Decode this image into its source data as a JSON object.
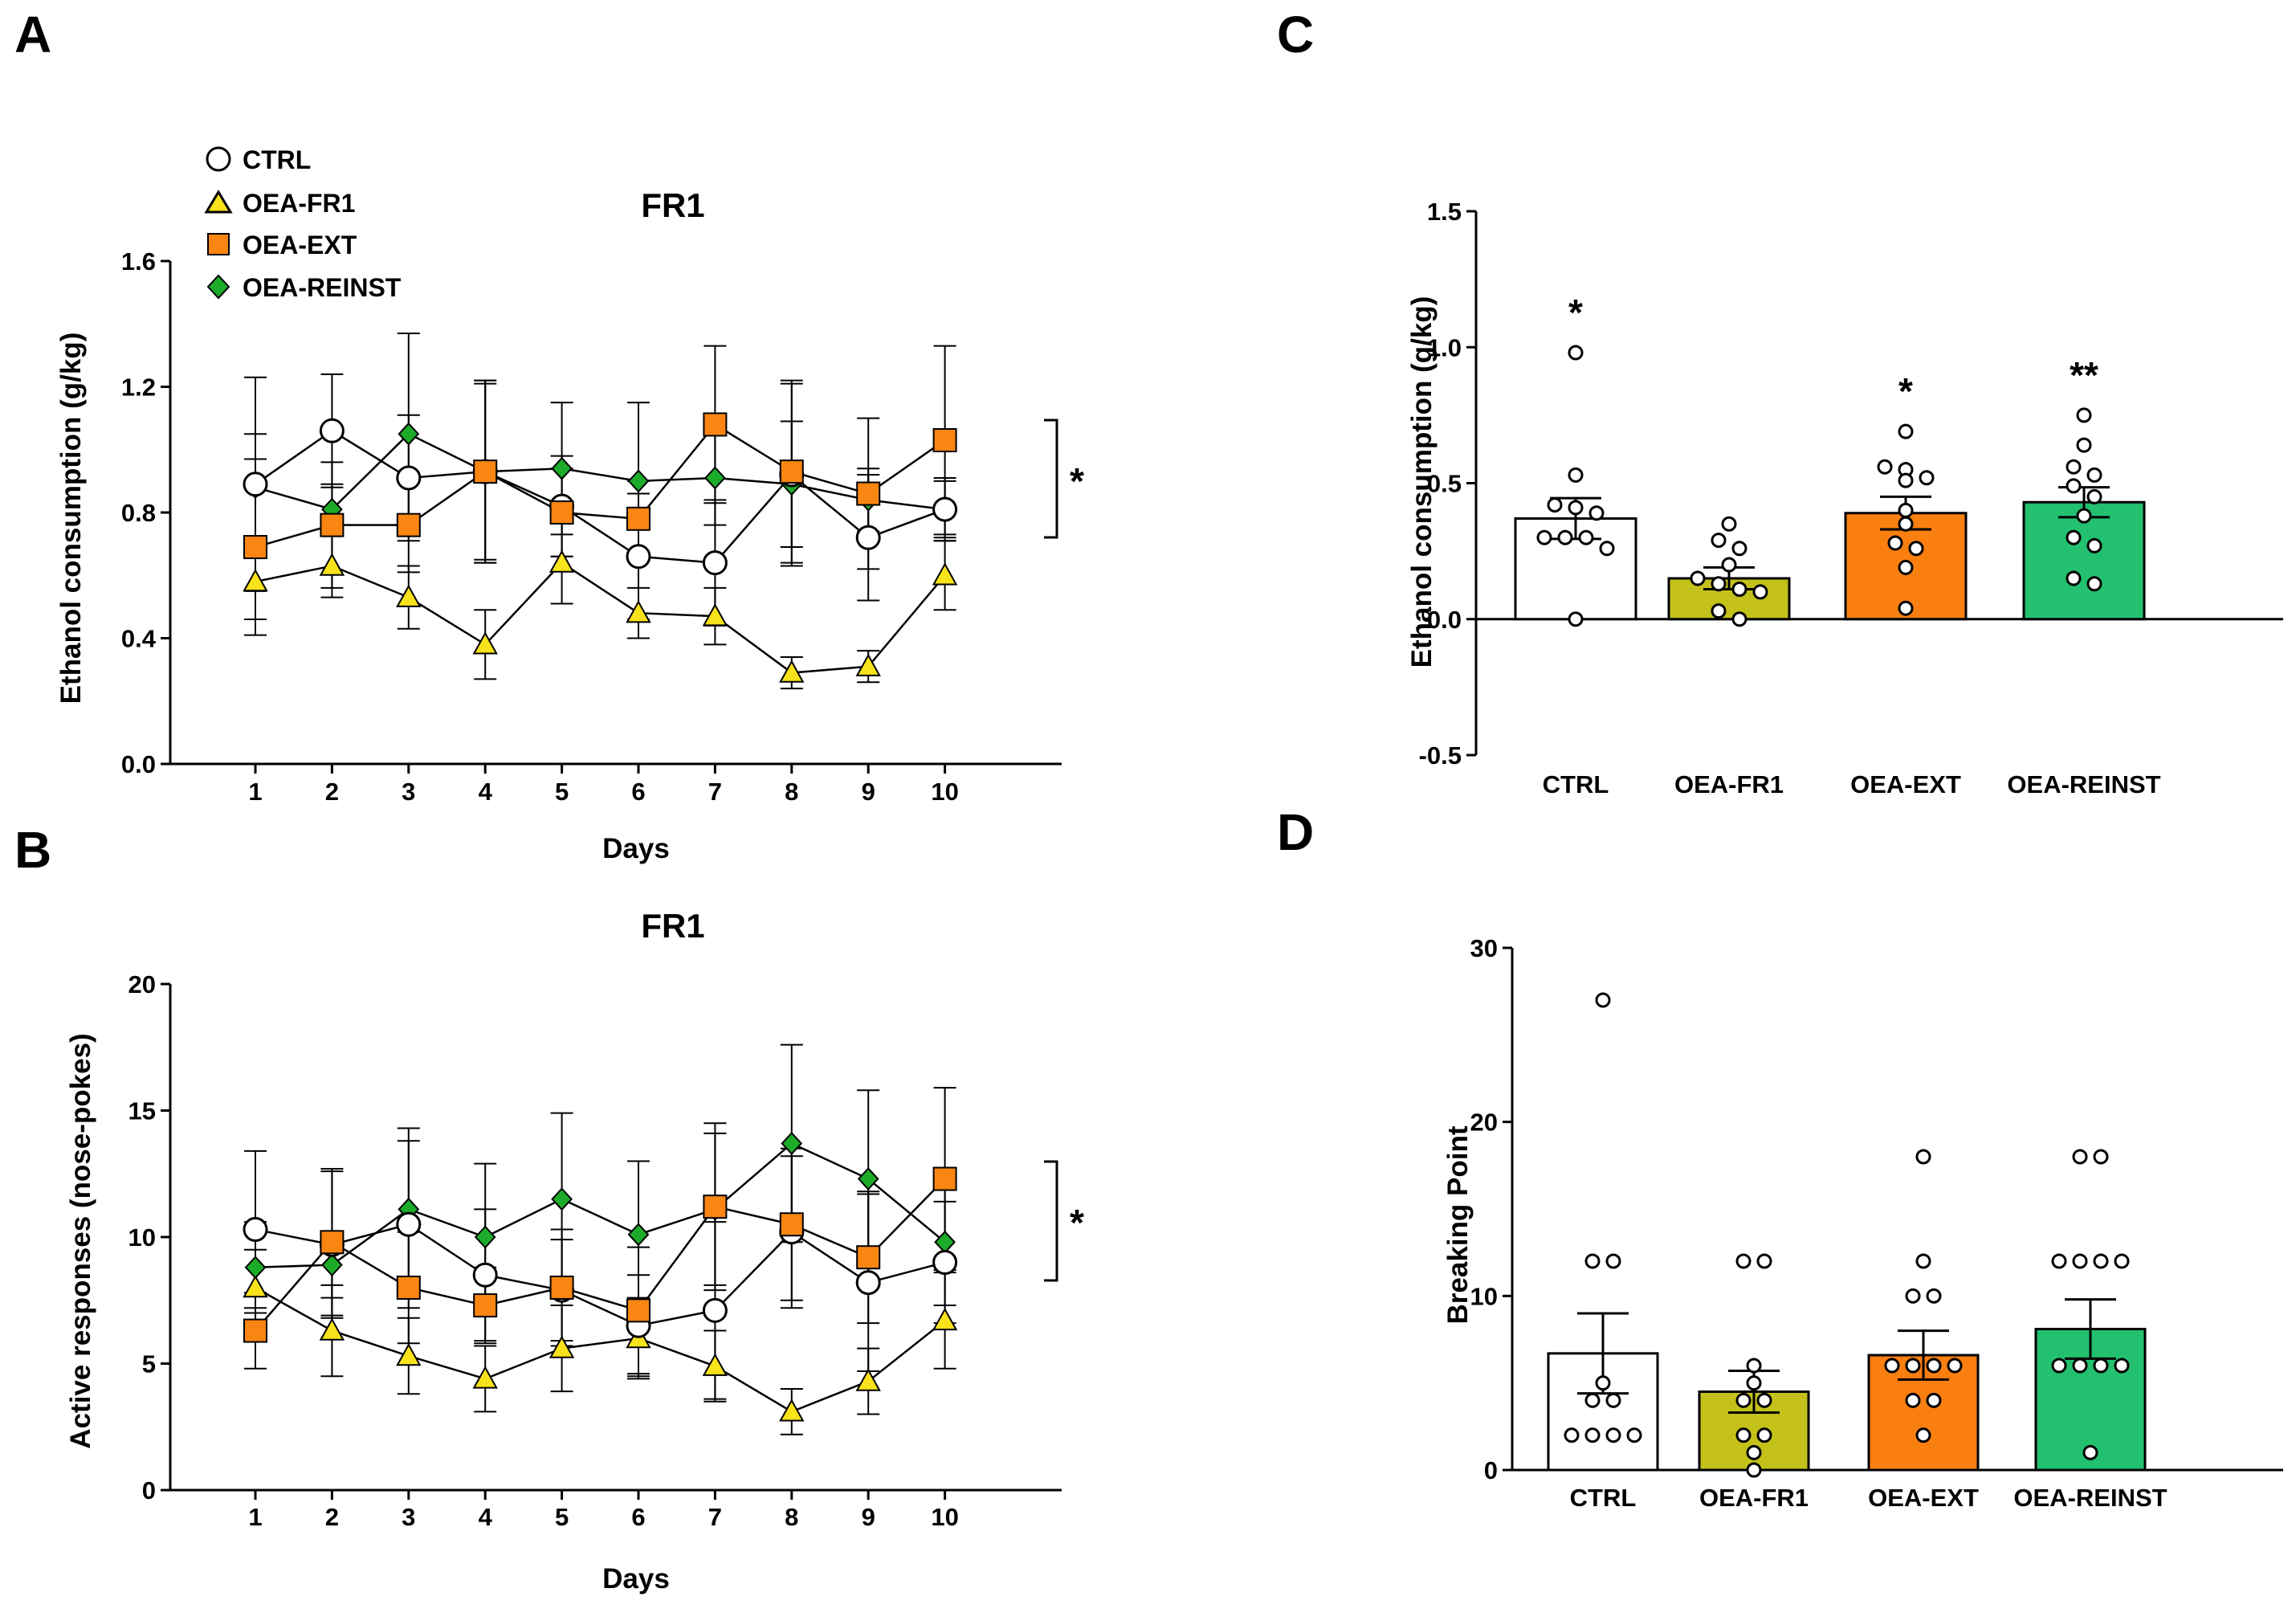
{
  "panels": {
    "A": "A",
    "B": "B",
    "C": "C",
    "D": "D"
  },
  "colors": {
    "CTRL": "#ffffff",
    "OEA-FR1": "#f8e21c",
    "OEA-EXT": "#f98512",
    "OEA-REINST": "#1dab2a",
    "bar_OEA-FR1": "#c3c11a",
    "bar_OEA-EXT": "#f97f10",
    "bar_OEA-REINST": "#22c06f"
  },
  "chart_data": [
    {
      "id": "A",
      "type": "line",
      "title": "FR1",
      "xlabel": "Days",
      "ylabel": "Ethanol consumption (g/kg)",
      "x": [
        1,
        2,
        3,
        4,
        5,
        6,
        7,
        8,
        9,
        10
      ],
      "xticks": [
        "1",
        "2",
        "3",
        "4",
        "5",
        "6",
        "7",
        "8",
        "9",
        "10"
      ],
      "ylim": [
        0,
        1.6
      ],
      "yticks": [
        "0.0",
        "0.4",
        "0.8",
        "1.2",
        "1.6"
      ],
      "significance": "*",
      "legend": [
        "CTRL",
        "OEA-FR1",
        "OEA-EXT",
        "OEA-REINST"
      ],
      "series": [
        {
          "name": "CTRL",
          "marker": "circle",
          "values": [
            0.89,
            1.06,
            0.91,
            0.93,
            0.82,
            0.66,
            0.64,
            0.92,
            0.72,
            0.81
          ],
          "err": [
            0.34,
            0.18,
            0.2,
            0.29,
            0.16,
            0.2,
            0.2,
            0.29,
            0.2,
            0.1
          ]
        },
        {
          "name": "OEA-FR1",
          "marker": "triangle",
          "values": [
            0.58,
            0.63,
            0.53,
            0.38,
            0.64,
            0.48,
            0.47,
            0.29,
            0.31,
            0.6
          ],
          "err": [
            0.12,
            0.1,
            0.1,
            0.11,
            0.13,
            0.08,
            0.09,
            0.05,
            0.05,
            0.11
          ]
        },
        {
          "name": "OEA-EXT",
          "marker": "square",
          "values": [
            0.69,
            0.76,
            0.76,
            0.93,
            0.8,
            0.78,
            1.08,
            0.93,
            0.86,
            1.03
          ],
          "err": [
            0.28,
            0.2,
            0.15,
            0.29,
            0.14,
            0.12,
            0.25,
            0.29,
            0.24,
            0.3
          ]
        },
        {
          "name": "OEA-REINST",
          "marker": "diamond",
          "values": [
            0.88,
            0.81,
            1.05,
            0.93,
            0.94,
            0.9,
            0.91,
            0.89,
            0.84,
            0.81
          ],
          "err": [
            0.17,
            0.08,
            0.32,
            0.28,
            0.21,
            0.25,
            0.15,
            0.2,
            0.1,
            0.09
          ]
        }
      ]
    },
    {
      "id": "B",
      "type": "line",
      "title": "FR1",
      "xlabel": "Days",
      "ylabel": "Active responses (nose-pokes)",
      "x": [
        1,
        2,
        3,
        4,
        5,
        6,
        7,
        8,
        9,
        10
      ],
      "xticks": [
        "1",
        "2",
        "3",
        "4",
        "5",
        "6",
        "7",
        "8",
        "9",
        "10"
      ],
      "ylim": [
        0,
        20
      ],
      "yticks": [
        "0",
        "5",
        "10",
        "15",
        "20"
      ],
      "significance": "*",
      "series": [
        {
          "name": "CTRL",
          "marker": "circle",
          "values": [
            10.3,
            9.7,
            10.5,
            8.5,
            7.9,
            6.5,
            7.1,
            10.2,
            8.2,
            9.0
          ],
          "err": [
            3.1,
            2.9,
            3.3,
            2.6,
            2.0,
            2.0,
            3.5,
            3.0,
            3.5,
            2.4
          ]
        },
        {
          "name": "OEA-FR1",
          "marker": "triangle",
          "values": [
            8.0,
            6.3,
            5.3,
            4.4,
            5.6,
            6.0,
            4.9,
            3.1,
            4.3,
            6.7
          ],
          "err": [
            1.5,
            1.8,
            1.5,
            1.3,
            1.7,
            1.6,
            1.4,
            0.9,
            1.3,
            1.9
          ]
        },
        {
          "name": "OEA-EXT",
          "marker": "square",
          "values": [
            6.3,
            9.8,
            8.0,
            7.3,
            8.0,
            7.1,
            11.2,
            10.5,
            9.2,
            12.3
          ],
          "err": [
            1.5,
            2.9,
            2.2,
            1.5,
            2.3,
            2.5,
            3.3,
            3.0,
            2.6,
            3.6
          ]
        },
        {
          "name": "OEA-REINST",
          "marker": "diamond",
          "values": [
            8.8,
            8.9,
            11.1,
            10.0,
            11.5,
            10.1,
            11.1,
            13.7,
            12.3,
            9.8
          ],
          "err": [
            1.8,
            1.3,
            3.2,
            2.9,
            3.4,
            2.9,
            3.0,
            3.9,
            3.5,
            2.5
          ]
        }
      ]
    },
    {
      "id": "C",
      "type": "bar",
      "categories": [
        "CTRL",
        "OEA-FR1",
        "OEA-EXT",
        "OEA-REINST"
      ],
      "values": [
        0.37,
        0.15,
        0.39,
        0.43
      ],
      "err": [
        0.075,
        0.04,
        0.06,
        0.055
      ],
      "ylabel": "Ethanol consumption (g/kg)",
      "ylim": [
        -0.5,
        1.5
      ],
      "yticks": [
        "-0.5",
        "0.0",
        "0.5",
        "1.0",
        "1.5"
      ],
      "significance": [
        "*",
        "",
        "*",
        "**"
      ],
      "points": [
        [
          0.98,
          0.53,
          0.42,
          0.41,
          0.39,
          0.3,
          0.3,
          0.3,
          0.26,
          0.0
        ],
        [
          0.35,
          0.29,
          0.26,
          0.2,
          0.15,
          0.13,
          0.11,
          0.1,
          0.03,
          0.0
        ],
        [
          0.69,
          0.56,
          0.55,
          0.52,
          0.51,
          0.4,
          0.35,
          0.28,
          0.26,
          0.19,
          0.04
        ],
        [
          0.75,
          0.64,
          0.56,
          0.53,
          0.49,
          0.45,
          0.38,
          0.3,
          0.27,
          0.15,
          0.13
        ]
      ]
    },
    {
      "id": "D",
      "type": "bar",
      "categories": [
        "CTRL",
        "OEA-FR1",
        "OEA-EXT",
        "OEA-REINST"
      ],
      "values": [
        6.7,
        4.5,
        6.6,
        8.1
      ],
      "err": [
        2.3,
        1.2,
        1.4,
        1.7
      ],
      "ylabel": "Breaking Point",
      "ylim": [
        0,
        30
      ],
      "yticks": [
        "0",
        "10",
        "20",
        "30"
      ],
      "points": [
        [
          27,
          12,
          12,
          5,
          4,
          4,
          2,
          2,
          2,
          2
        ],
        [
          12,
          12,
          6,
          5,
          4,
          4,
          2,
          2,
          1,
          0
        ],
        [
          18,
          12,
          10,
          10,
          6,
          6,
          6,
          6,
          4,
          4,
          2
        ],
        [
          18,
          18,
          12,
          12,
          12,
          12,
          6,
          6,
          6,
          6,
          1
        ]
      ]
    }
  ]
}
